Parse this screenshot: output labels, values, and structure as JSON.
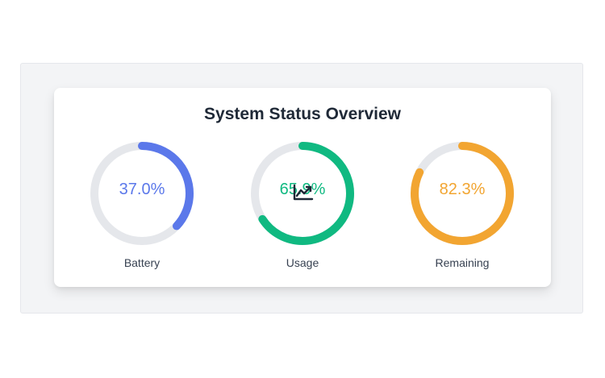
{
  "title": "System Status Overview",
  "gauges": [
    {
      "label": "Battery",
      "value_text": "37.0%",
      "value": 37.0,
      "color": "#5b78ea",
      "track": "#e5e7eb"
    },
    {
      "label": "Usage",
      "value_text": "65.9%",
      "value": 65.9,
      "color": "#10b981",
      "track": "#e5e7eb"
    },
    {
      "label": "Remaining",
      "value_text": "82.3%",
      "value": 82.3,
      "color": "#f2a531",
      "track": "#e5e7eb"
    }
  ],
  "icons": {
    "chart": "chart-line-icon"
  }
}
